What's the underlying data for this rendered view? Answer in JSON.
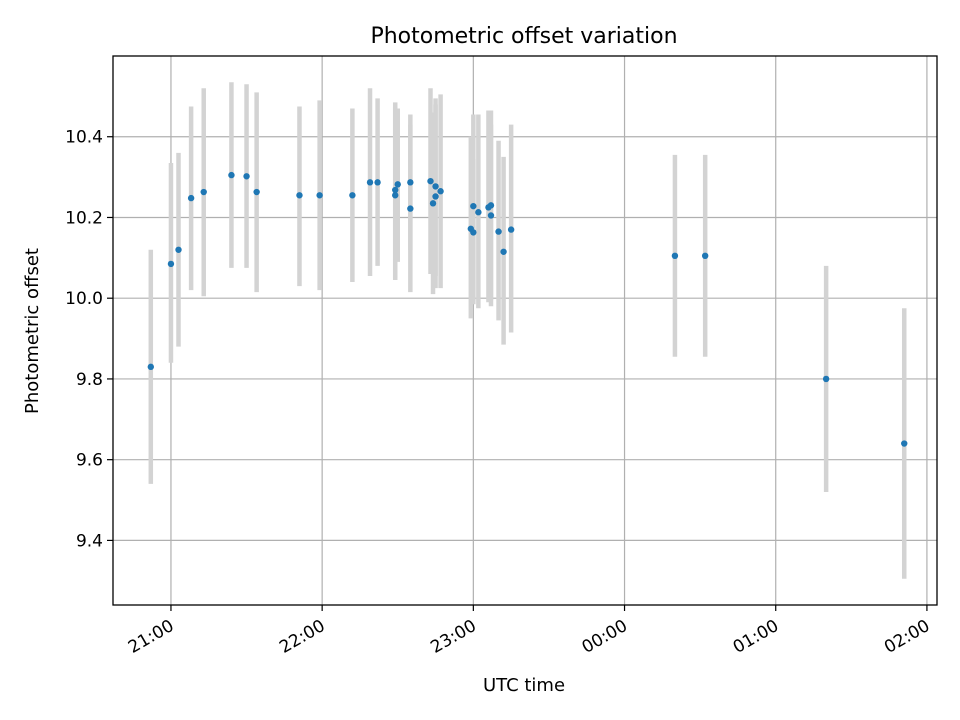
{
  "chart_data": {
    "type": "scatter",
    "title": "Photometric offset variation",
    "xlabel": "UTC time",
    "ylabel": "Photometric offset",
    "xlim": [
      "20:37",
      "02:04"
    ],
    "ylim": [
      9.24,
      10.6
    ],
    "grid": true,
    "x_ticks": [
      {
        "t": "21:00",
        "label": "21:00"
      },
      {
        "t": "22:00",
        "label": "22:00"
      },
      {
        "t": "23:00",
        "label": "23:00"
      },
      {
        "t": "00:00",
        "label": "00:00"
      },
      {
        "t": "01:00",
        "label": "01:00"
      },
      {
        "t": "02:00",
        "label": "02:00"
      }
    ],
    "y_ticks": [
      9.4,
      9.6,
      9.8,
      10.0,
      10.2,
      10.4
    ],
    "marker_color": "#1f77b4",
    "errorbar_color": "#d3d3d3",
    "points": [
      {
        "t": "20:52",
        "y": 9.83,
        "lo": 9.54,
        "hi": 10.12
      },
      {
        "t": "21:00",
        "y": 10.085,
        "lo": 9.84,
        "hi": 10.335
      },
      {
        "t": "21:03",
        "y": 10.12,
        "lo": 9.88,
        "hi": 10.36
      },
      {
        "t": "21:08",
        "y": 10.248,
        "lo": 10.02,
        "hi": 10.475
      },
      {
        "t": "21:13",
        "y": 10.263,
        "lo": 10.005,
        "hi": 10.52
      },
      {
        "t": "21:24",
        "y": 10.305,
        "lo": 10.075,
        "hi": 10.535
      },
      {
        "t": "21:30",
        "y": 10.302,
        "lo": 10.075,
        "hi": 10.53
      },
      {
        "t": "21:34",
        "y": 10.263,
        "lo": 10.015,
        "hi": 10.51
      },
      {
        "t": "21:51",
        "y": 10.255,
        "lo": 10.03,
        "hi": 10.475
      },
      {
        "t": "21:59",
        "y": 10.255,
        "lo": 10.02,
        "hi": 10.49
      },
      {
        "t": "22:12",
        "y": 10.255,
        "lo": 10.04,
        "hi": 10.47
      },
      {
        "t": "22:19",
        "y": 10.287,
        "lo": 10.055,
        "hi": 10.52
      },
      {
        "t": "22:22",
        "y": 10.287,
        "lo": 10.08,
        "hi": 10.495
      },
      {
        "t": "22:29",
        "y": 10.268,
        "lo": 10.05,
        "hi": 10.485
      },
      {
        "t": "22:29",
        "y": 10.255,
        "lo": 10.045,
        "hi": 10.475
      },
      {
        "t": "22:30",
        "y": 10.282,
        "lo": 10.09,
        "hi": 10.47
      },
      {
        "t": "22:35",
        "y": 10.287,
        "lo": 10.12,
        "hi": 10.455
      },
      {
        "t": "22:35",
        "y": 10.222,
        "lo": 10.015,
        "hi": 10.43
      },
      {
        "t": "22:43",
        "y": 10.29,
        "lo": 10.06,
        "hi": 10.52
      },
      {
        "t": "22:44",
        "y": 10.235,
        "lo": 10.01,
        "hi": 10.46
      },
      {
        "t": "22:45",
        "y": 10.252,
        "lo": 10.025,
        "hi": 10.48
      },
      {
        "t": "22:45",
        "y": 10.277,
        "lo": 10.055,
        "hi": 10.495
      },
      {
        "t": "22:47",
        "y": 10.265,
        "lo": 10.025,
        "hi": 10.505
      },
      {
        "t": "22:59",
        "y": 10.172,
        "lo": 9.95,
        "hi": 10.4
      },
      {
        "t": "23:00",
        "y": 10.163,
        "lo": 9.985,
        "hi": 10.345
      },
      {
        "t": "23:00",
        "y": 10.228,
        "lo": 9.995,
        "hi": 10.455
      },
      {
        "t": "23:02",
        "y": 10.213,
        "lo": 9.975,
        "hi": 10.455
      },
      {
        "t": "23:06",
        "y": 10.225,
        "lo": 9.99,
        "hi": 10.465
      },
      {
        "t": "23:07",
        "y": 10.205,
        "lo": 9.98,
        "hi": 10.43
      },
      {
        "t": "23:07",
        "y": 10.23,
        "lo": 9.995,
        "hi": 10.465
      },
      {
        "t": "23:10",
        "y": 10.165,
        "lo": 9.945,
        "hi": 10.39
      },
      {
        "t": "23:12",
        "y": 10.115,
        "lo": 9.885,
        "hi": 10.35
      },
      {
        "t": "23:15",
        "y": 10.17,
        "lo": 9.915,
        "hi": 10.43
      },
      {
        "t": "00:20",
        "y": 10.105,
        "lo": 9.855,
        "hi": 10.355
      },
      {
        "t": "00:32",
        "y": 10.105,
        "lo": 9.855,
        "hi": 10.355
      },
      {
        "t": "01:20",
        "y": 9.8,
        "lo": 9.52,
        "hi": 10.08
      },
      {
        "t": "01:51",
        "y": 9.64,
        "lo": 9.305,
        "hi": 9.975
      }
    ]
  }
}
